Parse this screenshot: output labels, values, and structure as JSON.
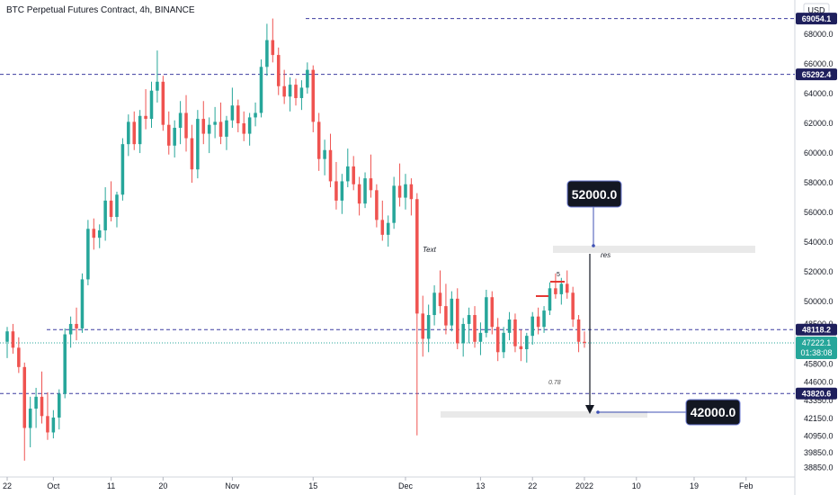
{
  "chart_data": {
    "type": "candlestick",
    "title": "BTC Perpetual Futures Contract, 4h, BINANCE",
    "currency": "USD",
    "y_axis": {
      "ylim": [
        38200,
        70300
      ],
      "ticks": [
        {
          "v": 68000,
          "label": "68000.0"
        },
        {
          "v": 66000,
          "label": "66000.0"
        },
        {
          "v": 64000,
          "label": "64000.0"
        },
        {
          "v": 62000,
          "label": "62000.0"
        },
        {
          "v": 60000,
          "label": "60000.0"
        },
        {
          "v": 58000,
          "label": "58000.0"
        },
        {
          "v": 56000,
          "label": "56000.0"
        },
        {
          "v": 54000,
          "label": "54000.0"
        },
        {
          "v": 52000,
          "label": "52000.0"
        },
        {
          "v": 50000,
          "label": "50000.0"
        },
        {
          "v": 48500,
          "label": "48500.0"
        },
        {
          "v": 45800,
          "label": "45800.0"
        },
        {
          "v": 44600,
          "label": "44600.0"
        },
        {
          "v": 43350,
          "label": "43350.0"
        },
        {
          "v": 42150,
          "label": "42150.0"
        },
        {
          "v": 40950,
          "label": "40950.0"
        },
        {
          "v": 39850,
          "label": "39850.0"
        },
        {
          "v": 38850,
          "label": "38850.0"
        }
      ]
    },
    "x_axis": {
      "ticks": [
        {
          "x": 0,
          "label": "22"
        },
        {
          "x": 8,
          "label": "Oct"
        },
        {
          "x": 18,
          "label": "11"
        },
        {
          "x": 27,
          "label": "20"
        },
        {
          "x": 39,
          "label": "Nov"
        },
        {
          "x": 53,
          "label": "15"
        },
        {
          "x": 69,
          "label": "Dec"
        },
        {
          "x": 82,
          "label": "13"
        },
        {
          "x": 91,
          "label": "22"
        },
        {
          "x": 100,
          "label": "2022"
        },
        {
          "x": 109,
          "label": "10"
        },
        {
          "x": 119,
          "label": "19"
        },
        {
          "x": 128,
          "label": "Feb"
        }
      ]
    },
    "levels": [
      {
        "value": 69054.1,
        "label": "69054.1",
        "color": "#3c3ca0"
      },
      {
        "value": 65292.4,
        "label": "65292.4",
        "color": "#3c3ca0"
      },
      {
        "value": 48118.2,
        "label": "48118.2",
        "color": "#3c3ca0"
      },
      {
        "value": 43820.6,
        "label": "43820.6",
        "color": "#3c3ca0"
      }
    ],
    "last_price": {
      "value": 47222.1,
      "label": "47222.1",
      "countdown": "01:38:08",
      "color": "#26a69a"
    },
    "callouts": [
      {
        "label": "52000.0",
        "value": 52000
      },
      {
        "label": "42000.0",
        "value": 42000
      }
    ],
    "annotations": {
      "text_label": "Text",
      "res_label": "res",
      "fib_label": "0.78",
      "five_label": "5"
    },
    "series": [
      {
        "o": 47300,
        "h": 48300,
        "l": 46200,
        "c": 48000
      },
      {
        "o": 48000,
        "h": 48500,
        "l": 46500,
        "c": 46900
      },
      {
        "o": 46900,
        "h": 47600,
        "l": 45200,
        "c": 45600
      },
      {
        "o": 45600,
        "h": 45900,
        "l": 39300,
        "c": 41500
      },
      {
        "o": 41500,
        "h": 43600,
        "l": 40200,
        "c": 42800
      },
      {
        "o": 42800,
        "h": 44200,
        "l": 41500,
        "c": 43600
      },
      {
        "o": 43600,
        "h": 45300,
        "l": 41800,
        "c": 42300
      },
      {
        "o": 42300,
        "h": 43900,
        "l": 40700,
        "c": 41200
      },
      {
        "o": 41200,
        "h": 42700,
        "l": 40800,
        "c": 42200
      },
      {
        "o": 42200,
        "h": 44100,
        "l": 41400,
        "c": 43800
      },
      {
        "o": 43800,
        "h": 48200,
        "l": 43500,
        "c": 47800
      },
      {
        "o": 47800,
        "h": 49000,
        "l": 46900,
        "c": 48500
      },
      {
        "o": 48500,
        "h": 49600,
        "l": 47400,
        "c": 48200
      },
      {
        "o": 48200,
        "h": 51900,
        "l": 47900,
        "c": 51500
      },
      {
        "o": 51500,
        "h": 55500,
        "l": 51100,
        "c": 54900
      },
      {
        "o": 54900,
        "h": 55600,
        "l": 53500,
        "c": 54300
      },
      {
        "o": 54300,
        "h": 55200,
        "l": 53600,
        "c": 54800
      },
      {
        "o": 54800,
        "h": 57700,
        "l": 54100,
        "c": 56800
      },
      {
        "o": 56800,
        "h": 58100,
        "l": 55400,
        "c": 55700
      },
      {
        "o": 55700,
        "h": 57400,
        "l": 55000,
        "c": 57200
      },
      {
        "o": 57200,
        "h": 61000,
        "l": 56800,
        "c": 60600
      },
      {
        "o": 60600,
        "h": 62600,
        "l": 59800,
        "c": 62100
      },
      {
        "o": 62100,
        "h": 62800,
        "l": 60200,
        "c": 60600
      },
      {
        "o": 60600,
        "h": 62900,
        "l": 60000,
        "c": 62500
      },
      {
        "o": 62500,
        "h": 64300,
        "l": 61600,
        "c": 62300
      },
      {
        "o": 62300,
        "h": 64800,
        "l": 61700,
        "c": 64200
      },
      {
        "o": 64200,
        "h": 66900,
        "l": 63400,
        "c": 64800
      },
      {
        "o": 64800,
        "h": 65200,
        "l": 61500,
        "c": 61900
      },
      {
        "o": 61900,
        "h": 62800,
        "l": 59900,
        "c": 60500
      },
      {
        "o": 60500,
        "h": 62200,
        "l": 59700,
        "c": 61700
      },
      {
        "o": 61700,
        "h": 63500,
        "l": 60600,
        "c": 62700
      },
      {
        "o": 62700,
        "h": 63900,
        "l": 60100,
        "c": 61000
      },
      {
        "o": 61000,
        "h": 61900,
        "l": 58000,
        "c": 58900
      },
      {
        "o": 58900,
        "h": 62900,
        "l": 58300,
        "c": 62300
      },
      {
        "o": 62300,
        "h": 63500,
        "l": 60600,
        "c": 61300
      },
      {
        "o": 61300,
        "h": 62400,
        "l": 60000,
        "c": 61900
      },
      {
        "o": 61900,
        "h": 63100,
        "l": 61000,
        "c": 62100
      },
      {
        "o": 62100,
        "h": 63400,
        "l": 60600,
        "c": 61100
      },
      {
        "o": 61100,
        "h": 62500,
        "l": 60200,
        "c": 62200
      },
      {
        "o": 62200,
        "h": 64400,
        "l": 61700,
        "c": 63200
      },
      {
        "o": 63200,
        "h": 63600,
        "l": 61400,
        "c": 62000
      },
      {
        "o": 62000,
        "h": 62800,
        "l": 60800,
        "c": 61300
      },
      {
        "o": 61300,
        "h": 62700,
        "l": 60500,
        "c": 62400
      },
      {
        "o": 62400,
        "h": 63400,
        "l": 61800,
        "c": 62700
      },
      {
        "o": 62700,
        "h": 66300,
        "l": 62400,
        "c": 65800
      },
      {
        "o": 65800,
        "h": 68700,
        "l": 65200,
        "c": 67600
      },
      {
        "o": 67600,
        "h": 69054,
        "l": 66100,
        "c": 66600
      },
      {
        "o": 66600,
        "h": 67100,
        "l": 63900,
        "c": 64500
      },
      {
        "o": 64500,
        "h": 65600,
        "l": 63300,
        "c": 63800
      },
      {
        "o": 63800,
        "h": 65100,
        "l": 62800,
        "c": 64600
      },
      {
        "o": 64600,
        "h": 65000,
        "l": 63200,
        "c": 63700
      },
      {
        "o": 63700,
        "h": 64900,
        "l": 62900,
        "c": 64400
      },
      {
        "o": 64400,
        "h": 66100,
        "l": 64000,
        "c": 65600
      },
      {
        "o": 65600,
        "h": 65900,
        "l": 61400,
        "c": 62100
      },
      {
        "o": 62100,
        "h": 62700,
        "l": 58800,
        "c": 59600
      },
      {
        "o": 59600,
        "h": 60900,
        "l": 58500,
        "c": 60200
      },
      {
        "o": 60200,
        "h": 61300,
        "l": 57700,
        "c": 58100
      },
      {
        "o": 58100,
        "h": 59400,
        "l": 56200,
        "c": 56800
      },
      {
        "o": 56800,
        "h": 58600,
        "l": 55900,
        "c": 58100
      },
      {
        "o": 58100,
        "h": 60300,
        "l": 57700,
        "c": 59100
      },
      {
        "o": 59100,
        "h": 59800,
        "l": 57500,
        "c": 57900
      },
      {
        "o": 57900,
        "h": 58400,
        "l": 55800,
        "c": 56600
      },
      {
        "o": 56600,
        "h": 58700,
        "l": 56300,
        "c": 58300
      },
      {
        "o": 58300,
        "h": 59900,
        "l": 57000,
        "c": 57500
      },
      {
        "o": 57500,
        "h": 57900,
        "l": 55000,
        "c": 55500
      },
      {
        "o": 55500,
        "h": 56800,
        "l": 54100,
        "c": 54500
      },
      {
        "o": 54500,
        "h": 55800,
        "l": 53700,
        "c": 55300
      },
      {
        "o": 55300,
        "h": 58400,
        "l": 54900,
        "c": 57800
      },
      {
        "o": 57800,
        "h": 59300,
        "l": 56400,
        "c": 57000
      },
      {
        "o": 57000,
        "h": 58600,
        "l": 56200,
        "c": 57900
      },
      {
        "o": 57900,
        "h": 58300,
        "l": 55800,
        "c": 56900
      },
      {
        "o": 56900,
        "h": 57300,
        "l": 41000,
        "c": 49200
      },
      {
        "o": 49200,
        "h": 50400,
        "l": 46300,
        "c": 47500
      },
      {
        "o": 47500,
        "h": 49800,
        "l": 46600,
        "c": 49100
      },
      {
        "o": 49100,
        "h": 51100,
        "l": 48400,
        "c": 50600
      },
      {
        "o": 50600,
        "h": 52100,
        "l": 49200,
        "c": 49700
      },
      {
        "o": 49700,
        "h": 51200,
        "l": 47800,
        "c": 48400
      },
      {
        "o": 48400,
        "h": 50700,
        "l": 48000,
        "c": 50200
      },
      {
        "o": 50200,
        "h": 50900,
        "l": 46800,
        "c": 47200
      },
      {
        "o": 47200,
        "h": 48900,
        "l": 46300,
        "c": 48500
      },
      {
        "o": 48500,
        "h": 49600,
        "l": 47200,
        "c": 49100
      },
      {
        "o": 49100,
        "h": 49700,
        "l": 46900,
        "c": 47300
      },
      {
        "o": 47300,
        "h": 48600,
        "l": 46400,
        "c": 47900
      },
      {
        "o": 47900,
        "h": 50800,
        "l": 47600,
        "c": 50300
      },
      {
        "o": 50300,
        "h": 50700,
        "l": 47800,
        "c": 48300
      },
      {
        "o": 48300,
        "h": 48900,
        "l": 46000,
        "c": 46600
      },
      {
        "o": 46600,
        "h": 48300,
        "l": 46200,
        "c": 47900
      },
      {
        "o": 47900,
        "h": 49300,
        "l": 47400,
        "c": 48800
      },
      {
        "o": 48800,
        "h": 49200,
        "l": 46600,
        "c": 47000
      },
      {
        "o": 47000,
        "h": 48100,
        "l": 46000,
        "c": 46800
      },
      {
        "o": 46800,
        "h": 47900,
        "l": 45900,
        "c": 47700
      },
      {
        "o": 47700,
        "h": 49300,
        "l": 47100,
        "c": 49000
      },
      {
        "o": 49000,
        "h": 49600,
        "l": 47800,
        "c": 48300
      },
      {
        "o": 48300,
        "h": 49700,
        "l": 47900,
        "c": 49400
      },
      {
        "o": 49400,
        "h": 51300,
        "l": 49100,
        "c": 50900
      },
      {
        "o": 50900,
        "h": 51900,
        "l": 50200,
        "c": 50500
      },
      {
        "o": 50500,
        "h": 51600,
        "l": 49800,
        "c": 51200
      },
      {
        "o": 51200,
        "h": 52100,
        "l": 50200,
        "c": 50600
      },
      {
        "o": 50600,
        "h": 51000,
        "l": 48300,
        "c": 48800
      },
      {
        "o": 48800,
        "h": 49100,
        "l": 46600,
        "c": 47300
      },
      {
        "o": 47300,
        "h": 48000,
        "l": 46900,
        "c": 47222
      }
    ]
  }
}
